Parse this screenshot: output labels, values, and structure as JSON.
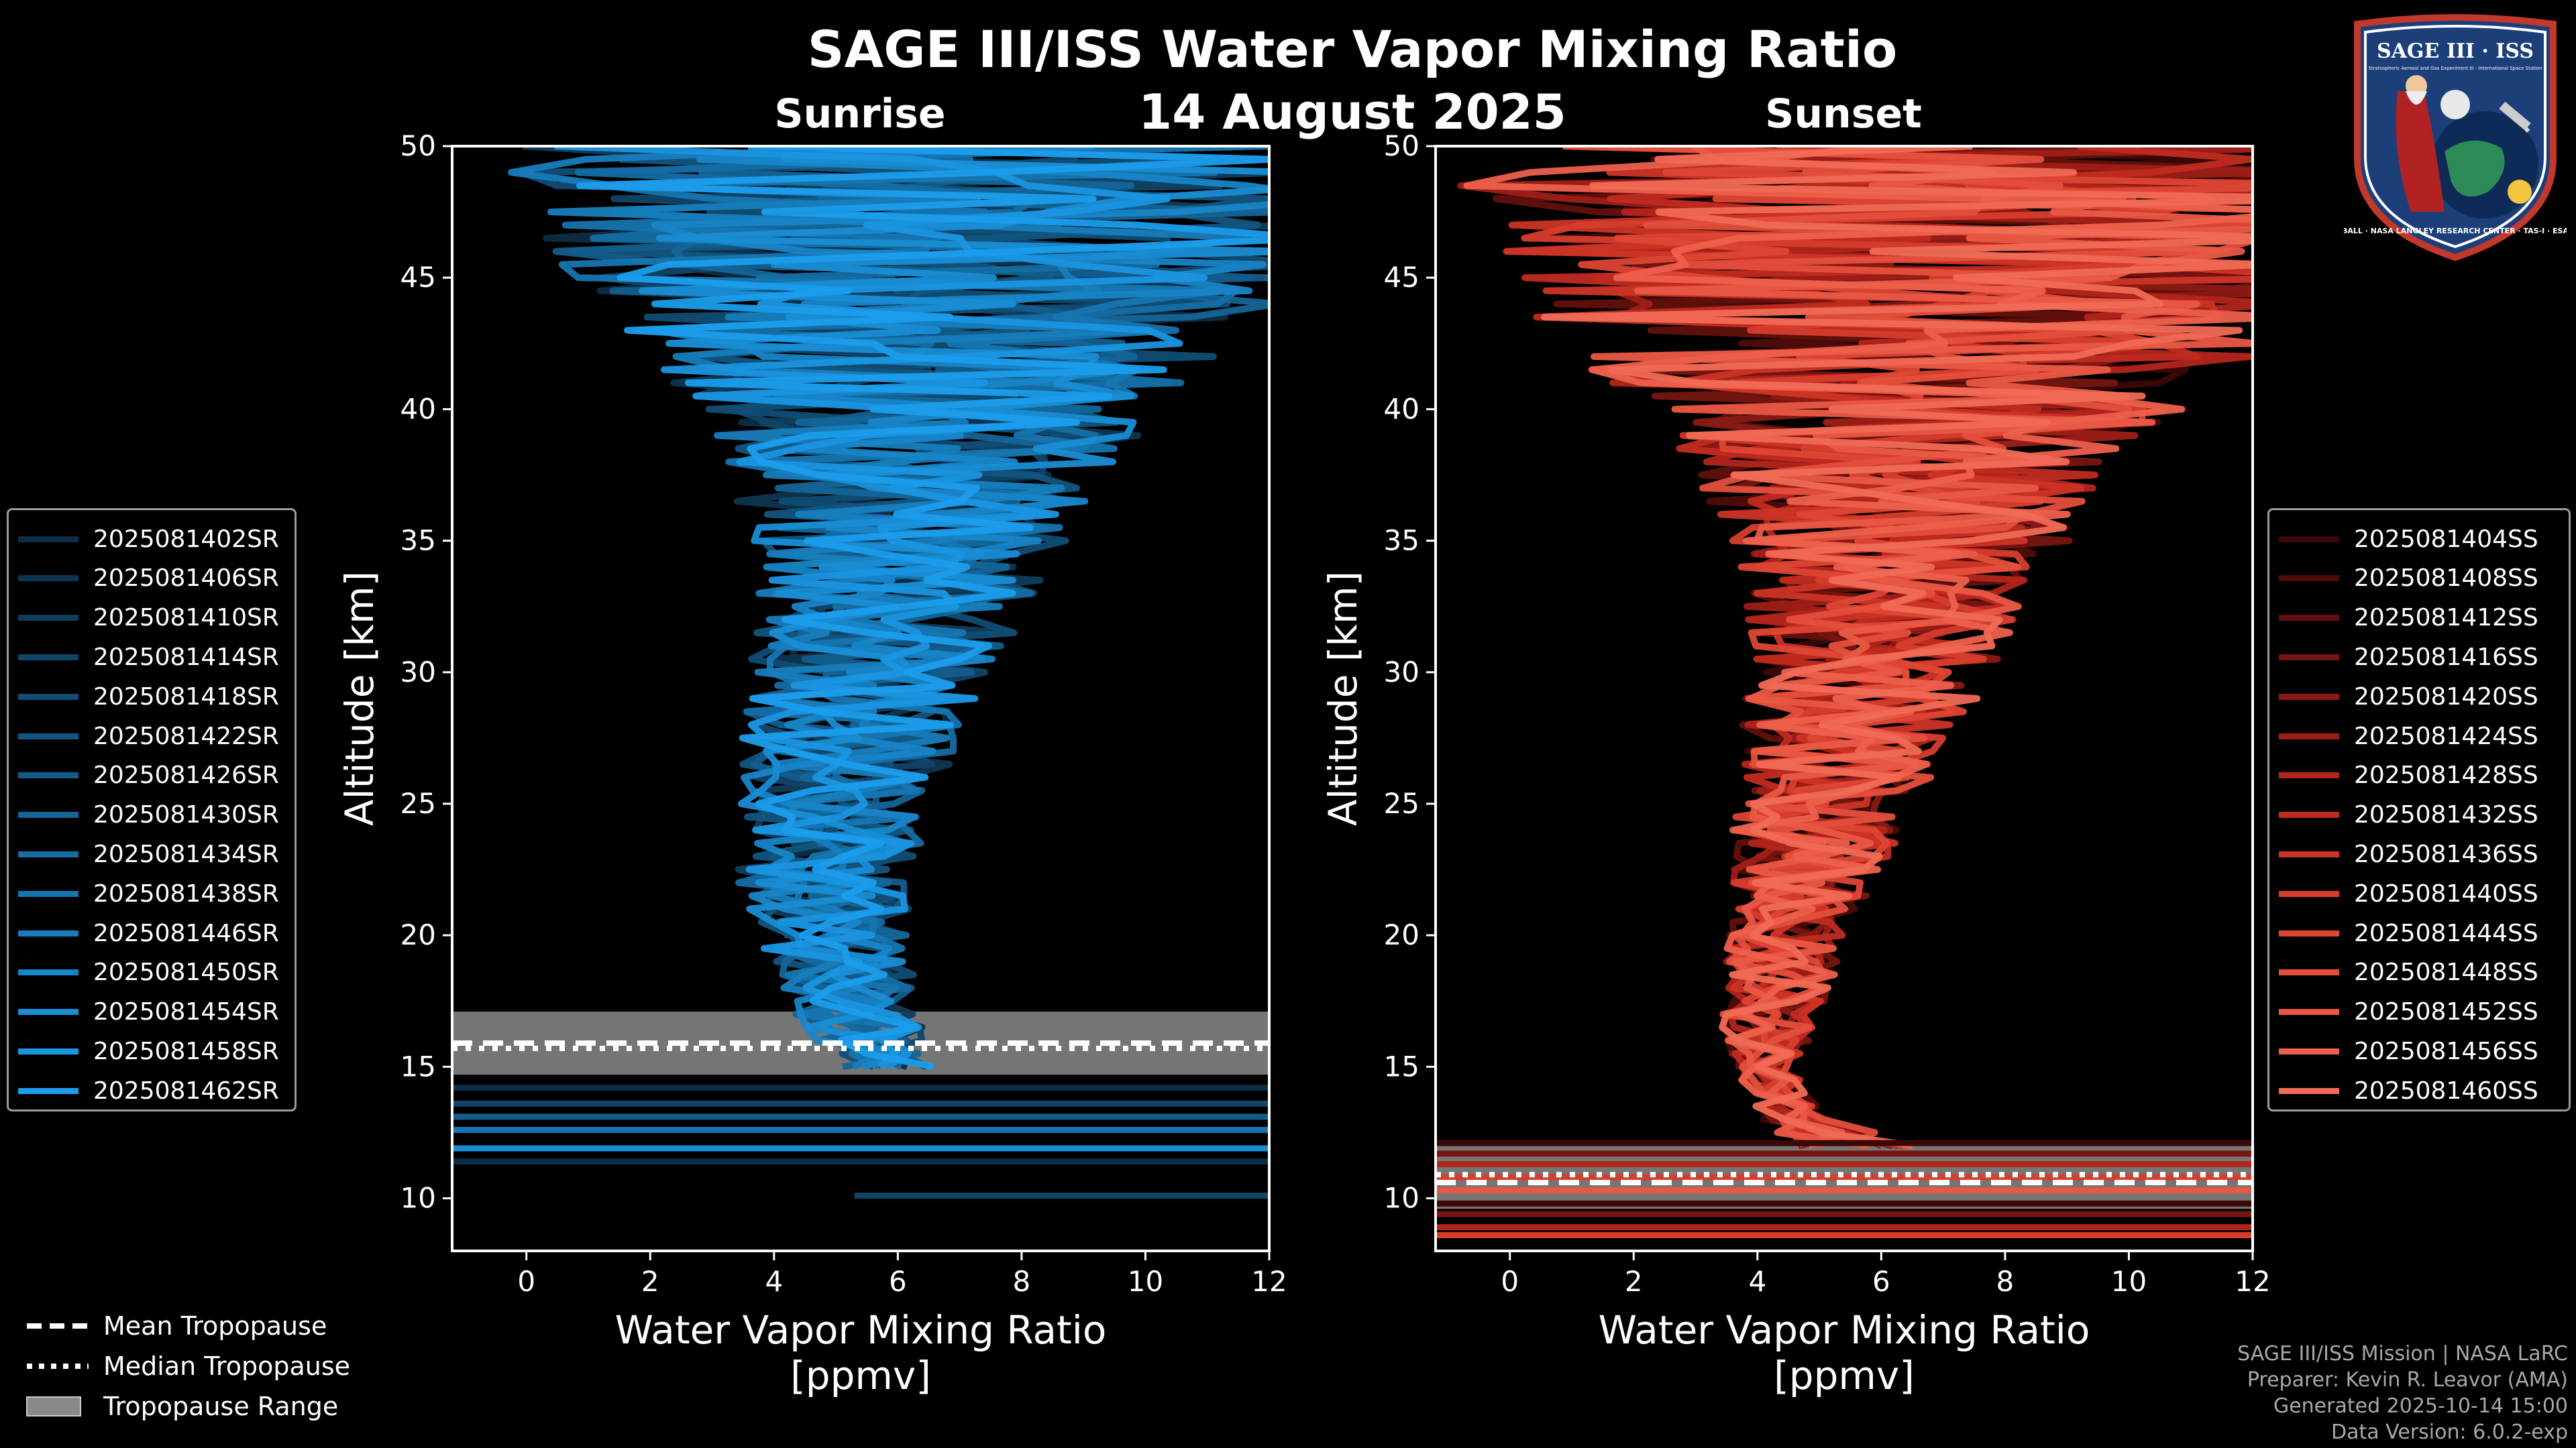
{
  "title": "SAGE III/ISS Water Vapor Mixing Ratio",
  "date": "14 August 2025",
  "panels": {
    "sunrise_title": "Sunrise",
    "sunset_title": "Sunset"
  },
  "colors": {
    "sunrise_series": [
      "#0d2d44",
      "#0e3550",
      "#0f3d5c",
      "#104568",
      "#114d74",
      "#125580",
      "#135d8c",
      "#146598",
      "#156da4",
      "#1675b0",
      "#177dbc",
      "#1885c8",
      "#198dd4",
      "#1a95e0",
      "#1b9dec"
    ],
    "sunset_series": [
      "#3a0806",
      "#4e0c0a",
      "#62100d",
      "#761510",
      "#8a1a14",
      "#9e1f17",
      "#b2251b",
      "#c02b20",
      "#cc3426",
      "#d63d2d",
      "#de4634",
      "#e44f3c",
      "#e95844",
      "#ed604c",
      "#f06a55"
    ],
    "tropopause_fill": "#8a8a8a",
    "axis": "#ffffff",
    "credits_text": "#a8a8a8"
  },
  "legend_sunrise": [
    "2025081402SR",
    "2025081406SR",
    "2025081410SR",
    "2025081414SR",
    "2025081418SR",
    "2025081422SR",
    "2025081426SR",
    "2025081430SR",
    "2025081434SR",
    "2025081438SR",
    "2025081446SR",
    "2025081450SR",
    "2025081454SR",
    "2025081458SR",
    "2025081462SR"
  ],
  "legend_sunset": [
    "2025081404SS",
    "2025081408SS",
    "2025081412SS",
    "2025081416SS",
    "2025081420SS",
    "2025081424SS",
    "2025081428SS",
    "2025081432SS",
    "2025081436SS",
    "2025081440SS",
    "2025081444SS",
    "2025081448SS",
    "2025081452SS",
    "2025081456SS",
    "2025081460SS"
  ],
  "tropopause_legend": {
    "mean": "Mean Tropopause",
    "median": "Median Tropopause",
    "range": "Tropopause Range"
  },
  "credits": [
    "SAGE III/ISS Mission | NASA LaRC",
    "Preparer: Kevin R. Leavor (AMA)",
    "Generated 2025-10-14 15:00",
    "Data Version: 6.0.2-exp"
  ],
  "logo": {
    "top_text": "SAGE III · ISS",
    "sub_text": "Stratospheric Aerosol and Gas Experiment III · International Space Station",
    "ring_text": "BALL · NASA LANGLEY RESEARCH CENTER · TAS-I · ESA"
  },
  "chart_data": [
    {
      "type": "line",
      "panel": "Sunrise",
      "title": "Sunrise",
      "xlabel": "Water Vapor Mixing Ratio [ppmv]",
      "ylabel": "Altitude [km]",
      "xlim": [
        -1.2,
        12
      ],
      "ylim": [
        8,
        50
      ],
      "xticks": [
        0,
        2,
        4,
        6,
        8,
        10,
        12
      ],
      "yticks": [
        10,
        15,
        20,
        25,
        30,
        35,
        40,
        45,
        50
      ],
      "series_names": [
        "2025081402SR",
        "2025081406SR",
        "2025081410SR",
        "2025081414SR",
        "2025081418SR",
        "2025081422SR",
        "2025081426SR",
        "2025081430SR",
        "2025081434SR",
        "2025081438SR",
        "2025081446SR",
        "2025081450SR",
        "2025081454SR",
        "2025081458SR",
        "2025081462SR"
      ],
      "profile_envelope": {
        "altitude_km": [
          15,
          16,
          17,
          18,
          20,
          22,
          25,
          28,
          30,
          33,
          35,
          38,
          40,
          43,
          45,
          48,
          50
        ],
        "mean_ppmv": [
          5.9,
          5.6,
          5.3,
          5.2,
          4.9,
          4.8,
          5.0,
          5.3,
          5.6,
          6.0,
          6.2,
          6.3,
          6.5,
          6.6,
          6.7,
          6.8,
          6.8
        ],
        "spread_ppmv": [
          0.8,
          0.9,
          1.0,
          1.1,
          1.3,
          1.4,
          1.6,
          1.8,
          2.0,
          2.3,
          2.6,
          3.2,
          3.8,
          5.0,
          6.0,
          7.0,
          7.5
        ]
      },
      "below_tropopause_altitudes_km": [
        14.2,
        13.6,
        13.1,
        12.6,
        11.9,
        11.4,
        10.1
      ],
      "tropopause": {
        "mean_km": 15.9,
        "median_km": 15.7,
        "range_km": [
          14.7,
          17.1
        ]
      }
    },
    {
      "type": "line",
      "panel": "Sunset",
      "title": "Sunset",
      "xlabel": "Water Vapor Mixing Ratio [ppmv]",
      "ylabel": "Altitude [km]",
      "xlim": [
        -1.2,
        12
      ],
      "ylim": [
        8,
        50
      ],
      "xticks": [
        0,
        2,
        4,
        6,
        8,
        10,
        12
      ],
      "yticks": [
        10,
        15,
        20,
        25,
        30,
        35,
        40,
        45,
        50
      ],
      "series_names": [
        "2025081404SS",
        "2025081408SS",
        "2025081412SS",
        "2025081416SS",
        "2025081420SS",
        "2025081424SS",
        "2025081428SS",
        "2025081432SS",
        "2025081436SS",
        "2025081440SS",
        "2025081444SS",
        "2025081448SS",
        "2025081452SS",
        "2025081456SS",
        "2025081460SS"
      ],
      "profile_envelope": {
        "altitude_km": [
          12,
          13,
          14,
          15,
          17,
          20,
          22,
          25,
          28,
          30,
          33,
          35,
          38,
          40,
          43,
          45,
          48,
          50
        ],
        "mean_ppmv": [
          5.6,
          4.6,
          4.3,
          4.1,
          4.2,
          4.5,
          4.8,
          5.1,
          5.5,
          5.8,
          6.1,
          6.3,
          6.4,
          6.5,
          6.6,
          6.7,
          6.8,
          6.8
        ],
        "spread_ppmv": [
          1.0,
          0.6,
          0.5,
          0.6,
          0.8,
          1.0,
          1.2,
          1.5,
          1.8,
          2.0,
          2.3,
          2.8,
          3.5,
          4.5,
          6.0,
          7.0,
          7.5,
          8.0
        ]
      },
      "near_surface_altitudes_km": [
        12.1,
        11.7,
        11.3,
        10.8,
        10.3,
        9.8,
        9.4,
        8.9,
        8.6
      ],
      "tropopause": {
        "mean_km": 10.6,
        "median_km": 10.9,
        "range_km": [
          9.6,
          12.1
        ]
      }
    }
  ]
}
